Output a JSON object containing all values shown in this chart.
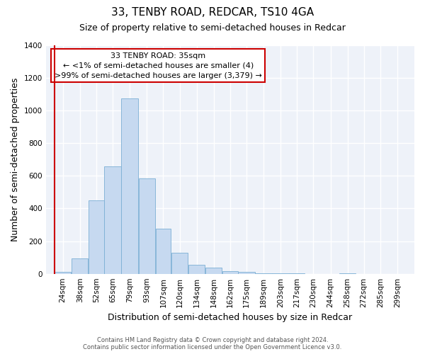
{
  "title": "33, TENBY ROAD, REDCAR, TS10 4GA",
  "subtitle": "Size of property relative to semi-detached houses in Redcar",
  "xlabel": "Distribution of semi-detached houses by size in Redcar",
  "ylabel": "Number of semi-detached properties",
  "bin_labels": [
    "24sqm",
    "38sqm",
    "52sqm",
    "65sqm",
    "79sqm",
    "93sqm",
    "107sqm",
    "120sqm",
    "134sqm",
    "148sqm",
    "162sqm",
    "175sqm",
    "189sqm",
    "203sqm",
    "217sqm",
    "230sqm",
    "244sqm",
    "258sqm",
    "272sqm",
    "285sqm",
    "299sqm"
  ],
  "bar_values": [
    10,
    95,
    450,
    660,
    1075,
    585,
    275,
    130,
    55,
    38,
    18,
    12,
    5,
    3,
    1,
    0,
    0,
    1,
    0,
    0,
    0
  ],
  "bar_color": "#c6d9f0",
  "bar_edge_color": "#7bafd4",
  "annotation_box_text": "33 TENBY ROAD: 35sqm\n← <1% of semi-detached houses are smaller (4)\n>99% of semi-detached houses are larger (3,379) →",
  "annotation_box_color": "#ffffff",
  "annotation_box_edge_color": "#cc0000",
  "marker_line_color": "#cc0000",
  "ylim": [
    0,
    1400
  ],
  "yticks": [
    0,
    200,
    400,
    600,
    800,
    1000,
    1200,
    1400
  ],
  "footer_line1": "Contains HM Land Registry data © Crown copyright and database right 2024.",
  "footer_line2": "Contains public sector information licensed under the Open Government Licence v3.0.",
  "fig_background_color": "#ffffff",
  "plot_background_color": "#eef2f9",
  "grid_color": "#ffffff",
  "title_fontsize": 11,
  "subtitle_fontsize": 9,
  "axis_label_fontsize": 9,
  "tick_fontsize": 7.5,
  "footer_fontsize": 6
}
